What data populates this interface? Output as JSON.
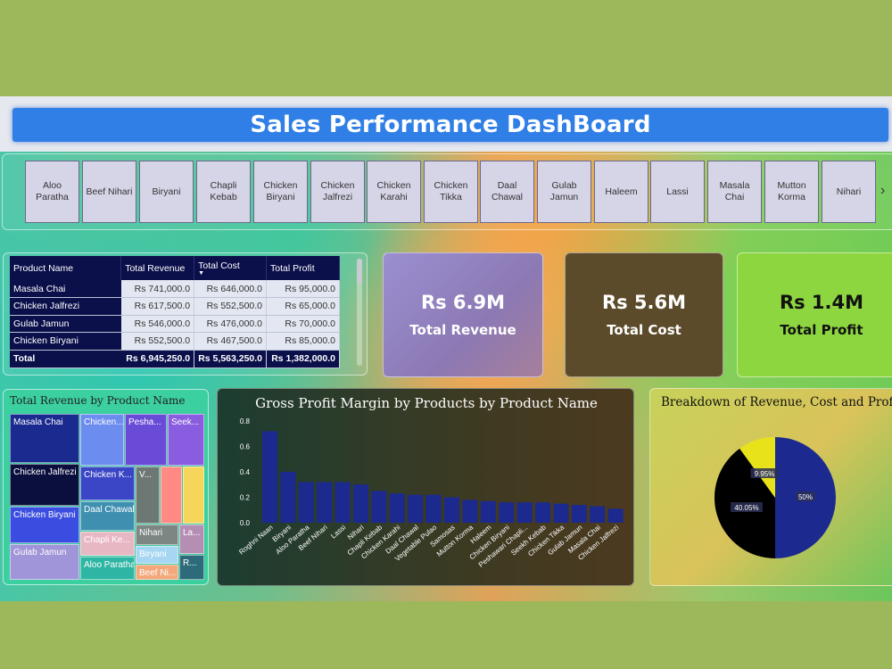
{
  "title": "Sales Performance DashBoard",
  "slicer": {
    "items": [
      "Aloo Paratha",
      "Beef Nihari",
      "Biryani",
      "Chapli Kebab",
      "Chicken Biryani",
      "Chicken Jalfrezi",
      "Chicken Karahi",
      "Chicken Tikka",
      "Daal Chawal",
      "Gulab Jamun",
      "Haleem",
      "Lassi",
      "Masala Chai",
      "Mutton Korma",
      "Nihari"
    ],
    "next_icon": "chevron-right-icon"
  },
  "table": {
    "headers": [
      "Product Name",
      "Total Revenue",
      "Total Cost",
      "Total Profit"
    ],
    "rows": [
      [
        "Masala Chai",
        "Rs 741,000.0",
        "Rs 646,000.0",
        "Rs 95,000.0"
      ],
      [
        "Chicken Jalfrezi",
        "Rs 617,500.0",
        "Rs 552,500.0",
        "Rs 65,000.0"
      ],
      [
        "Gulab Jamun",
        "Rs 546,000.0",
        "Rs 476,000.0",
        "Rs 70,000.0"
      ],
      [
        "Chicken Biryani",
        "Rs 552,500.0",
        "Rs 467,500.0",
        "Rs 85,000.0"
      ]
    ],
    "total": [
      "Total",
      "Rs 6,945,250.0",
      "Rs 5,563,250.0",
      "Rs 1,382,000.0"
    ]
  },
  "kpis": {
    "revenue": {
      "value": "Rs 6.9M",
      "label": "Total Revenue"
    },
    "cost": {
      "value": "Rs 5.6M",
      "label": "Total Cost"
    },
    "profit": {
      "value": "Rs 1.4M",
      "label": "Total Profit"
    }
  },
  "treemap": {
    "title": "Total Revenue by Product Name",
    "tiles": [
      "Masala Chai",
      "Chicken Jalfrezi",
      "Chicken Biryani",
      "Gulab Jamun",
      "Chicken...",
      "Chicken K...",
      "Daal Chawal",
      "Chapli Ke...",
      "Aloo Paratha",
      "Pesha...",
      "Seek...",
      "V...",
      "Nihari",
      "Biryani",
      "Beef Ni...",
      "La...",
      "R..."
    ]
  },
  "chart_data": [
    {
      "type": "bar",
      "title": "Gross Profit Margin by Products by Product Name",
      "categories": [
        "Roghni Naan",
        "Biryani",
        "Aloo Paratha",
        "Beef Nihari",
        "Lassi",
        "Nihari",
        "Chapli Kebab",
        "Chicken Karahi",
        "Daal Chawal",
        "Vegetable Pulao",
        "Samosas",
        "Mutton Korma",
        "Haleem",
        "Chicken Biryani",
        "Peshawari Chapli...",
        "Seekh Kebab",
        "Chicken Tikka",
        "Gulab Jamun",
        "Masala Chai",
        "Chicken Jalfrezi"
      ],
      "values": [
        0.72,
        0.4,
        0.32,
        0.32,
        0.32,
        0.3,
        0.25,
        0.23,
        0.22,
        0.22,
        0.2,
        0.18,
        0.17,
        0.16,
        0.16,
        0.16,
        0.15,
        0.14,
        0.13,
        0.11
      ],
      "yticks": [
        "0.0",
        "0.2",
        "0.4",
        "0.6",
        "0.8"
      ],
      "ylim": [
        0,
        0.8
      ],
      "bar_color": "#1c2a8f"
    },
    {
      "type": "pie",
      "title": "Breakdown of Revenue, Cost and Profit",
      "slices": [
        {
          "value": 50,
          "label": "50%",
          "color": "#1c2a8f"
        },
        {
          "value": 40.05,
          "label": "40.05%",
          "color": "#000000"
        },
        {
          "value": 9.95,
          "label": "9.95%",
          "color": "#e8e21a"
        }
      ]
    }
  ]
}
